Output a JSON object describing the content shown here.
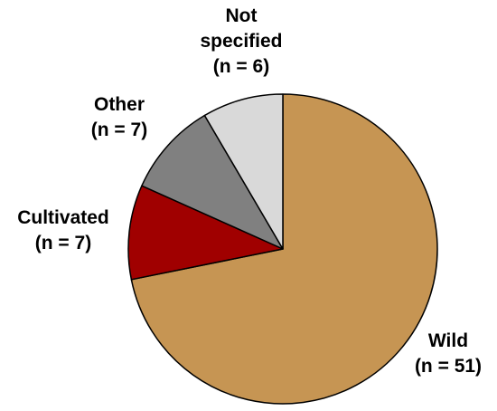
{
  "chart_data": {
    "type": "pie",
    "title": "",
    "start_angle_deg": 0,
    "direction": "clockwise",
    "slices": [
      {
        "name": "Wild",
        "count_label": "(n = 51)",
        "value": 51,
        "color": "#c69553"
      },
      {
        "name": "Cultivated",
        "count_label": "(n = 7)",
        "value": 7,
        "color": "#a00000"
      },
      {
        "name": "Other",
        "count_label": "(n = 7)",
        "value": 7,
        "color": "#808080"
      },
      {
        "name": "Not specified",
        "count_label": "(n = 6)",
        "value": 6,
        "color": "#d9d9d9"
      }
    ]
  }
}
